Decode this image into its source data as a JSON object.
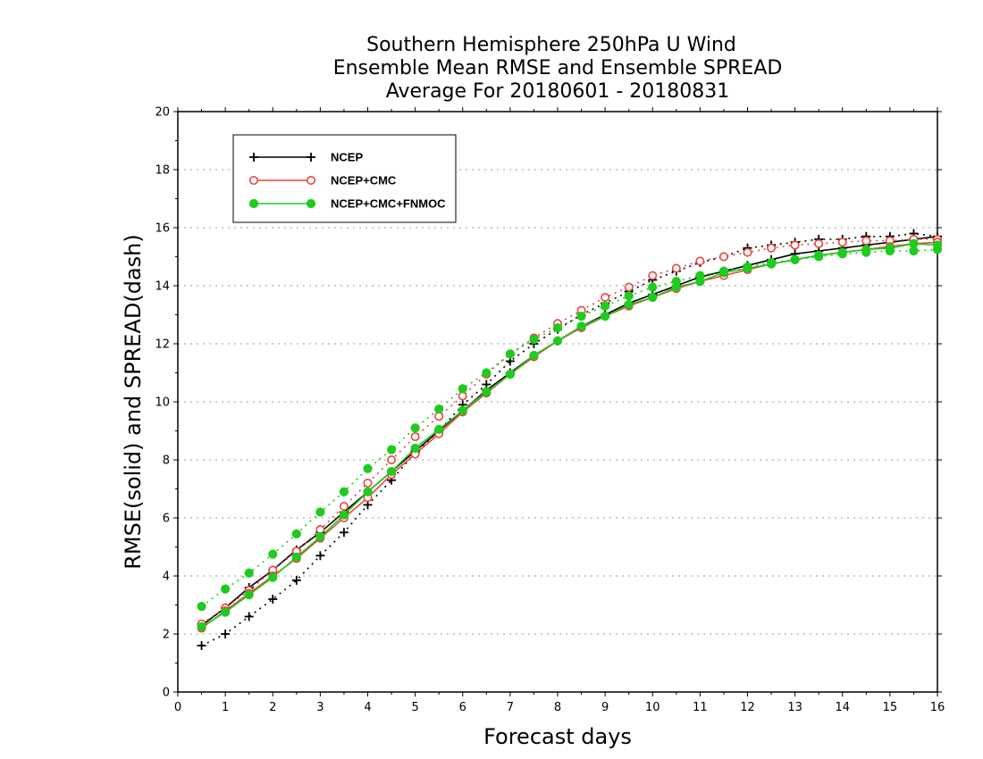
{
  "chart_data": {
    "type": "line",
    "title_lines": [
      "Southern Hemisphere 250hPa U Wind",
      "Ensemble Mean RMSE and Ensemble SPREAD",
      "Average For 20180601 - 20180831"
    ],
    "xlabel": "Forecast days",
    "ylabel": "RMSE(solid) and SPREAD(dash)",
    "xlim": [
      0,
      16
    ],
    "ylim": [
      0,
      20
    ],
    "x_ticks": [
      0,
      1,
      2,
      3,
      4,
      5,
      6,
      7,
      8,
      9,
      10,
      11,
      12,
      13,
      14,
      15,
      16
    ],
    "y_ticks": [
      0,
      2,
      4,
      6,
      8,
      10,
      12,
      14,
      16,
      18,
      20
    ],
    "grid": "horizontal dotted",
    "legend_position": "top-left",
    "x": [
      0.5,
      1.0,
      1.5,
      2.0,
      2.5,
      3.0,
      3.5,
      4.0,
      4.5,
      5.0,
      5.5,
      6.0,
      6.5,
      7.0,
      7.5,
      8.0,
      8.5,
      9.0,
      9.5,
      10.0,
      10.5,
      11.0,
      11.5,
      12.0,
      12.5,
      13.0,
      13.5,
      14.0,
      14.5,
      15.0,
      15.5,
      16.0
    ],
    "series": [
      {
        "name": "NCEP",
        "color": "#000000",
        "marker": "plus",
        "rmse": [
          2.3,
          2.9,
          3.6,
          4.2,
          4.9,
          5.5,
          6.2,
          6.9,
          7.6,
          8.3,
          9.0,
          9.7,
          10.4,
          11.0,
          11.6,
          12.1,
          12.6,
          13.0,
          13.4,
          13.7,
          14.0,
          14.3,
          14.5,
          14.7,
          14.9,
          15.1,
          15.2,
          15.3,
          15.4,
          15.5,
          15.6,
          15.7
        ],
        "spread": [
          1.6,
          2.0,
          2.6,
          3.2,
          3.85,
          4.7,
          5.5,
          6.45,
          7.3,
          8.25,
          9.0,
          9.9,
          10.6,
          11.4,
          12.0,
          12.5,
          13.0,
          13.4,
          13.8,
          14.2,
          14.5,
          14.8,
          15.0,
          15.3,
          15.4,
          15.5,
          15.6,
          15.6,
          15.7,
          15.7,
          15.8,
          15.7
        ]
      },
      {
        "name": "NCEP+CMC",
        "color": "#e8453c",
        "marker": "open-circle",
        "rmse": [
          2.2,
          2.8,
          3.4,
          4.0,
          4.6,
          5.3,
          6.0,
          6.7,
          7.5,
          8.2,
          8.9,
          9.65,
          10.3,
          10.95,
          11.55,
          12.1,
          12.55,
          12.95,
          13.3,
          13.6,
          13.9,
          14.15,
          14.35,
          14.55,
          14.75,
          14.9,
          15.05,
          15.15,
          15.25,
          15.35,
          15.45,
          15.5
        ],
        "spread": [
          2.35,
          2.9,
          3.5,
          4.2,
          4.85,
          5.6,
          6.4,
          7.2,
          8.0,
          8.8,
          9.5,
          10.2,
          10.95,
          11.65,
          12.2,
          12.7,
          13.15,
          13.6,
          13.95,
          14.35,
          14.6,
          14.85,
          15.0,
          15.15,
          15.3,
          15.4,
          15.45,
          15.5,
          15.55,
          15.55,
          15.6,
          15.6
        ]
      },
      {
        "name": "NCEP+CMC+FNMOC",
        "color": "#1ecb1e",
        "marker": "filled-circle",
        "rmse": [
          2.25,
          2.75,
          3.35,
          3.95,
          4.65,
          5.35,
          6.1,
          6.9,
          7.6,
          8.4,
          9.05,
          9.7,
          10.35,
          10.95,
          11.6,
          12.1,
          12.6,
          12.95,
          13.35,
          13.6,
          13.95,
          14.15,
          14.45,
          14.6,
          14.75,
          14.9,
          15.05,
          15.15,
          15.25,
          15.3,
          15.45,
          15.4
        ],
        "spread": [
          2.95,
          3.55,
          4.1,
          4.75,
          5.45,
          6.2,
          6.9,
          7.7,
          8.35,
          9.1,
          9.75,
          10.45,
          11.0,
          11.65,
          12.15,
          12.55,
          12.95,
          13.3,
          13.65,
          13.95,
          14.15,
          14.35,
          14.5,
          14.65,
          14.8,
          14.9,
          15.0,
          15.1,
          15.15,
          15.2,
          15.2,
          15.25
        ]
      }
    ]
  }
}
